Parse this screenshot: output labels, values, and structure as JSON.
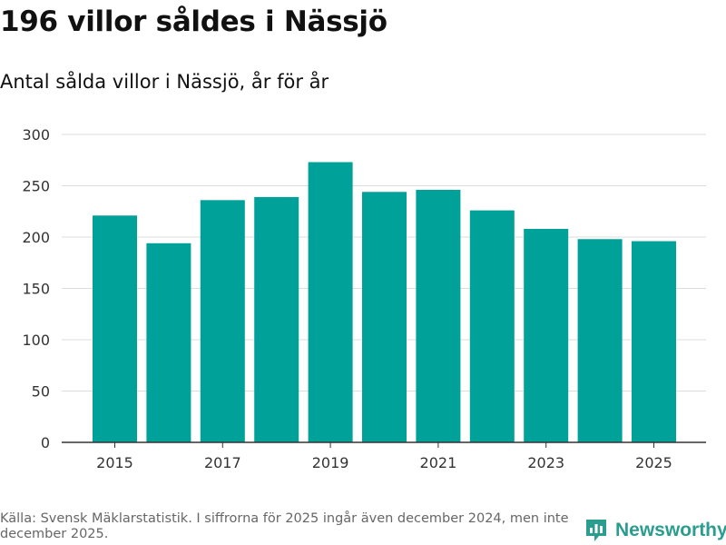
{
  "title": "196 villor såldes i Nässjö",
  "subtitle": "Antal sålda villor i Nässjö, år för år",
  "source": "Källa: Svensk Mäklarstatistik. I siffrorna för 2025 ingår även december 2024, men inte december 2025.",
  "brand": {
    "name": "Newsworthy",
    "color": "#2a9d8f"
  },
  "colors": {
    "bar": "#00a199",
    "grid": "#dddddd",
    "axis": "#333333"
  },
  "chart_data": {
    "type": "bar",
    "title": "196 villor såldes i Nässjö",
    "subtitle": "Antal sålda villor i Nässjö, år för år",
    "xlabel": "",
    "ylabel": "",
    "categories": [
      "2015",
      "2016",
      "2017",
      "2018",
      "2019",
      "2020",
      "2021",
      "2022",
      "2023",
      "2024",
      "2025"
    ],
    "x_tick_labels": [
      "2015",
      "2017",
      "2019",
      "2021",
      "2023",
      "2025"
    ],
    "values": [
      221,
      194,
      236,
      239,
      273,
      244,
      246,
      226,
      208,
      198,
      196
    ],
    "ylim": [
      0,
      300
    ],
    "y_ticks": [
      0,
      50,
      100,
      150,
      200,
      250,
      300
    ],
    "grid": true,
    "legend": "none"
  }
}
